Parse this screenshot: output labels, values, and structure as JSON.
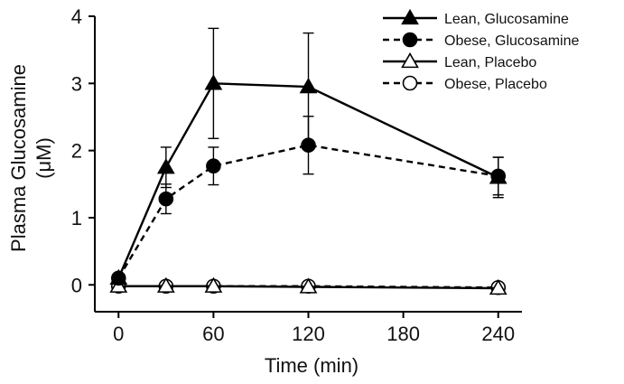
{
  "chart_data": {
    "type": "line",
    "title": "",
    "xlabel": "Time (min)",
    "ylabel": "Plasma Glucosamine",
    "ylabel_unit": "(μM)",
    "x": [
      0,
      30,
      60,
      120,
      240
    ],
    "xticks": [
      0,
      60,
      120,
      180,
      240
    ],
    "yticks": [
      0,
      1,
      2,
      3,
      4
    ],
    "xlim": [
      -15,
      255
    ],
    "ylim": [
      -0.4,
      4
    ],
    "legend_position": "top-right",
    "series": [
      {
        "name": "Lean, Glucosamine",
        "marker": "filled-triangle",
        "line": "solid",
        "values": [
          0.1,
          1.75,
          3.0,
          2.95,
          1.6
        ],
        "error": [
          0,
          0.3,
          0.82,
          0.8,
          0.3
        ]
      },
      {
        "name": "Obese, Glucosamine",
        "marker": "filled-circle",
        "line": "dashed",
        "values": [
          0.1,
          1.28,
          1.77,
          2.08,
          1.62
        ],
        "error": [
          0,
          0.22,
          0.28,
          0.43,
          0.28
        ]
      },
      {
        "name": "Lean, Placebo",
        "marker": "open-triangle",
        "line": "solid",
        "values": [
          -0.02,
          -0.02,
          -0.02,
          -0.03,
          -0.05
        ],
        "error": [
          0,
          0,
          0,
          0,
          0
        ]
      },
      {
        "name": "Obese, Placebo",
        "marker": "open-circle",
        "line": "dashed",
        "values": [
          -0.02,
          -0.02,
          -0.02,
          -0.02,
          -0.04
        ],
        "error": [
          0,
          0,
          0,
          0,
          0
        ]
      }
    ]
  }
}
